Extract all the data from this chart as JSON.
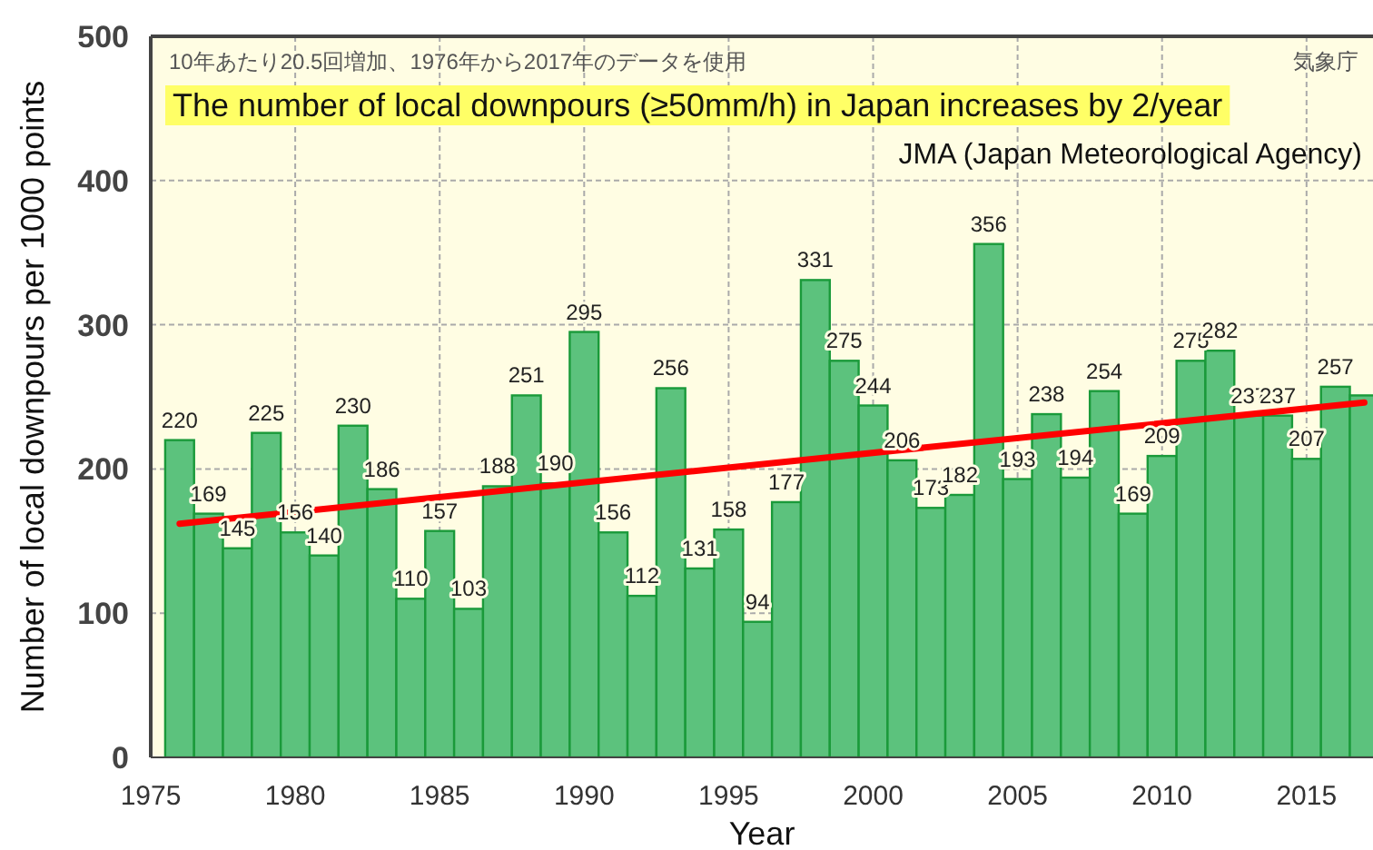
{
  "chart_data": {
    "type": "bar",
    "title": "The number of local downpours (≥50mm/h) in Japan increases by 2/year",
    "annotations": [
      "10年あたり20.5回増加、1976年から2017年のデータを使用",
      "気象庁",
      "JMA (Japan Meteorological Agency)"
    ],
    "xlabel": "Year",
    "ylabel": "Number of local downpours per 1000 points",
    "x": [
      1976,
      1977,
      1978,
      1979,
      1980,
      1981,
      1982,
      1983,
      1984,
      1985,
      1986,
      1987,
      1988,
      1989,
      1990,
      1991,
      1992,
      1993,
      1994,
      1995,
      1996,
      1997,
      1998,
      1999,
      2000,
      2001,
      2002,
      2003,
      2004,
      2005,
      2006,
      2007,
      2008,
      2009,
      2010,
      2011,
      2012,
      2013,
      2014,
      2015,
      2016,
      2017
    ],
    "series": [
      {
        "color": "#5cc27d",
        "values": [
          220,
          169,
          145,
          225,
          156,
          140,
          230,
          186,
          110,
          157,
          103,
          188,
          251,
          190,
          295,
          156,
          112,
          256,
          131,
          158,
          94,
          177,
          331,
          275,
          244,
          206,
          173,
          182,
          356,
          193,
          238,
          194,
          254,
          169,
          209,
          275,
          282,
          237,
          237,
          207,
          257,
          251
        ],
        "value_labels": [
          "220",
          "169",
          "145",
          "225",
          "156",
          "140",
          "230",
          "186",
          "110",
          "157",
          "103",
          "188",
          "251",
          "190",
          "295",
          "156",
          "112",
          "256",
          "131",
          "158",
          "94",
          "177",
          "331",
          "275",
          "244",
          "206",
          "173",
          "182",
          "356",
          "193",
          "238",
          "194",
          "254",
          "169",
          "209",
          "275",
          "282",
          "237",
          "237",
          "207",
          "257",
          null
        ]
      },
      {
        "type": "line",
        "color": "#ff0000",
        "x": [
          1976,
          2017
        ],
        "values": [
          162,
          246
        ]
      }
    ],
    "xlim": [
      1975,
      2017.3
    ],
    "xticks": [
      1975,
      1980,
      1985,
      1990,
      1995,
      2000,
      2005,
      2010,
      2015
    ],
    "ylim": [
      0,
      500
    ],
    "yticks": [
      0,
      100,
      200,
      300,
      400,
      500
    ],
    "grid": true
  }
}
